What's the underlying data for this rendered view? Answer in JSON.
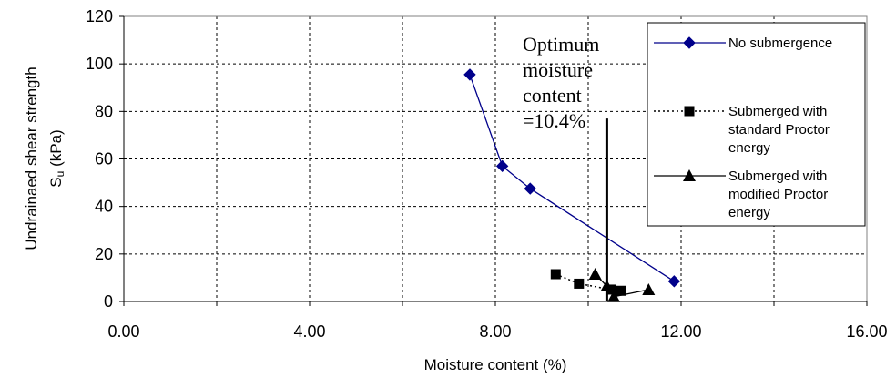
{
  "chart_data": {
    "type": "scatter",
    "xlabel": "Moisture content (%)",
    "ylabel_line1": "Undrainaed shear strength",
    "ylabel_line2_main": "S",
    "ylabel_line2_sub": "u",
    "ylabel_line2_rest": " (kPa)",
    "xlim": [
      0,
      16
    ],
    "ylim": [
      0,
      120
    ],
    "x_ticks": [
      0,
      4,
      8,
      12,
      16
    ],
    "x_tick_labels": [
      "0.00",
      "4.00",
      "8.00",
      "12.00",
      "16.00"
    ],
    "y_ticks": [
      0,
      20,
      40,
      60,
      80,
      100,
      120
    ],
    "y_tick_labels": [
      "0",
      "20",
      "40",
      "60",
      "80",
      "100",
      "120"
    ],
    "grid": true,
    "legend_position": "top-right",
    "series": [
      {
        "name": "No submergence",
        "legend_lines": [
          "No submergence"
        ],
        "marker": "diamond",
        "line_style": "solid",
        "color": "#00008b",
        "x": [
          7.45,
          8.15,
          8.75,
          11.85
        ],
        "y": [
          95.5,
          57,
          47.5,
          8.5
        ]
      },
      {
        "name": "Submerged with standard Proctor energy",
        "legend_lines": [
          "Submerged with",
          "standard Proctor",
          "energy"
        ],
        "marker": "square",
        "line_style": "dotted",
        "color": "#000000",
        "x": [
          9.3,
          9.8,
          10.5,
          10.7
        ],
        "y": [
          11.5,
          7.5,
          5,
          4.5
        ]
      },
      {
        "name": "Submerged with modified Proctor energy",
        "legend_lines": [
          "Submerged with",
          "modified Proctor",
          "energy"
        ],
        "marker": "triangle",
        "line_style": "solid",
        "color": "#000000",
        "x": [
          10.15,
          10.4,
          10.55,
          11.3
        ],
        "y": [
          11.5,
          6.5,
          2,
          5
        ]
      }
    ],
    "annotation": {
      "lines": [
        "Optimum",
        "moisture",
        "content",
        "=10.4%"
      ],
      "x": 10.4,
      "y_top": 77,
      "y_bottom": 0
    }
  }
}
